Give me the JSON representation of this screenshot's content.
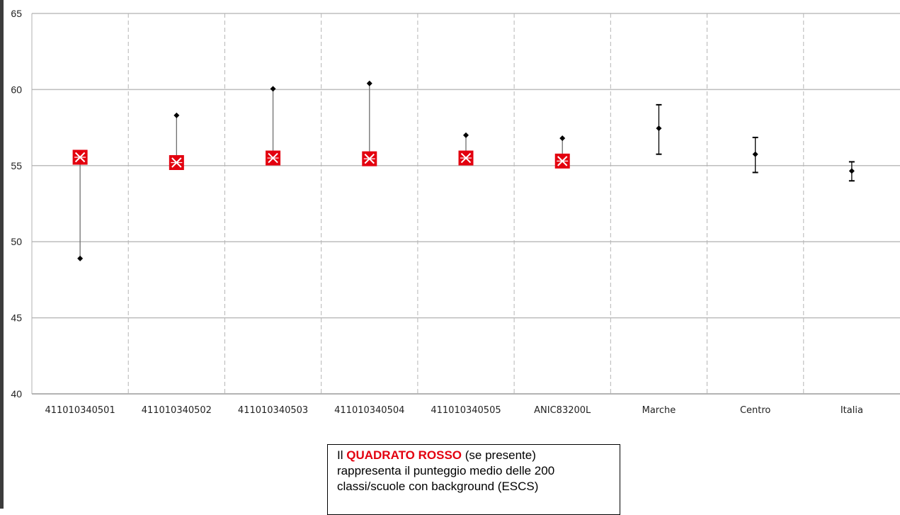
{
  "chart_data": {
    "type": "scatter",
    "ylim": [
      40,
      65
    ],
    "yticks": [
      40,
      45,
      50,
      55,
      60,
      65
    ],
    "categories": [
      "411010340501",
      "411010340502",
      "411010340503",
      "411010340504",
      "411010340505",
      "ANIC83200L",
      "Marche",
      "Centro",
      "Italia"
    ],
    "series": [
      {
        "values": [
          48.9,
          58.3,
          60.05,
          60.4,
          57.0,
          56.8,
          57.45,
          55.75,
          54.65
        ]
      },
      {
        "values": [
          55.55,
          55.2,
          55.5,
          55.45,
          55.5,
          55.3,
          null,
          null,
          null
        ]
      }
    ],
    "error_bars": [
      null,
      null,
      null,
      null,
      null,
      null,
      [
        55.75,
        59.0
      ],
      [
        54.55,
        56.85
      ],
      [
        54.0,
        55.25
      ]
    ],
    "grid": "horizontal solid, vertical dashed",
    "colors": {
      "red_square": "#e3000f",
      "marker": "#000000",
      "gridline": "#bdbdbd",
      "dashed": "#b5b5b5"
    }
  },
  "legend": {
    "prefix": "Il ",
    "highlight": "QUADRATO ROSSO",
    "suffix": " (se presente)",
    "line2": "rappresenta il punteggio medio delle 200",
    "line3": "classi/scuole con background (ESCS)"
  }
}
